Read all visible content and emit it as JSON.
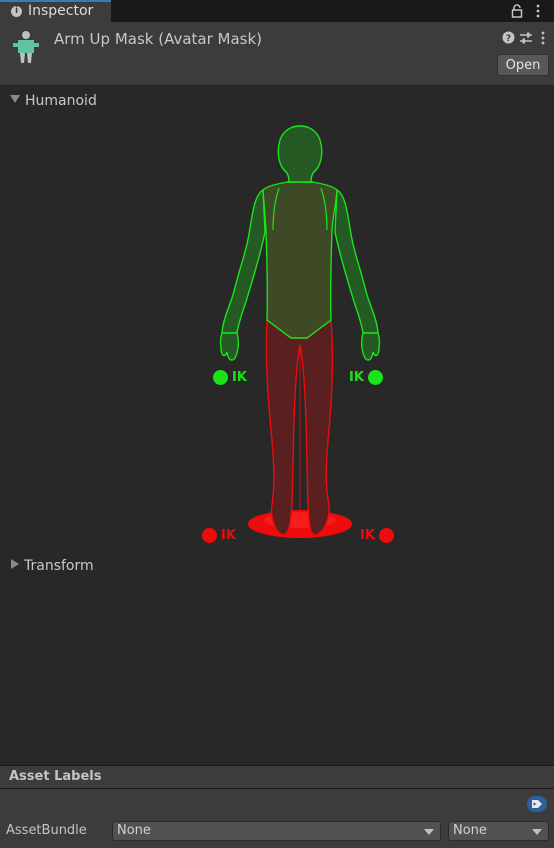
{
  "tab": {
    "label": "Inspector"
  },
  "header": {
    "title": "Arm Up Mask (Avatar Mask)",
    "open_label": "Open"
  },
  "sections": {
    "humanoid": "Humanoid",
    "transform": "Transform"
  },
  "humanoid_figure": {
    "active_color": "#18e418",
    "inactive_color": "#ee0b0b",
    "ik_label": "IK",
    "enabled_parts": [
      "head",
      "body",
      "left-arm",
      "right-arm",
      "left-hand-ik",
      "right-hand-ik"
    ],
    "disabled_parts": [
      "legs",
      "root",
      "left-foot-ik",
      "right-foot-ik"
    ]
  },
  "asset_labels": {
    "title": "Asset Labels"
  },
  "asset_bundle": {
    "label": "AssetBundle",
    "name_value": "None",
    "variant_value": "None"
  },
  "icons": [
    "info-icon",
    "lock-icon",
    "kebab-menu-icon",
    "avatar-mask-icon",
    "help-icon",
    "preset-icon",
    "tag-icon",
    "dropdown-arrow-icon"
  ]
}
